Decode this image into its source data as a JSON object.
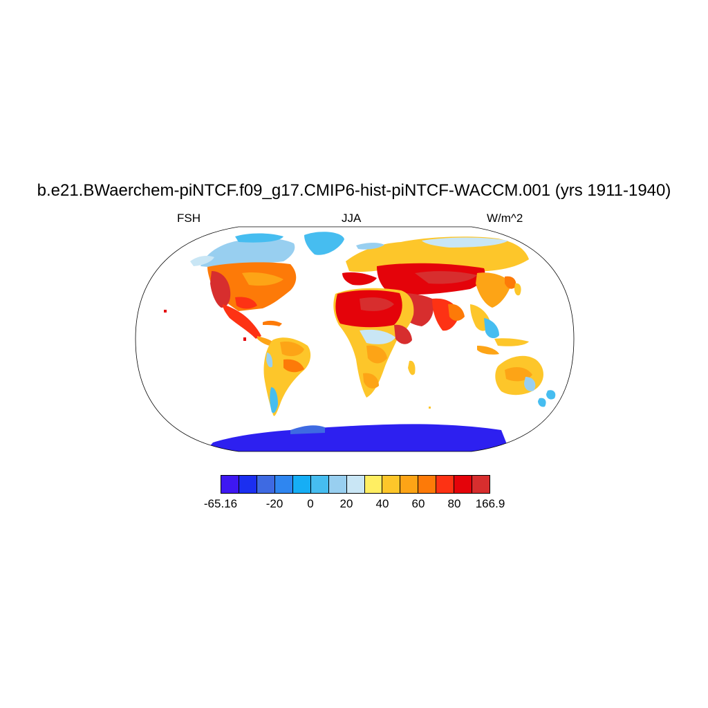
{
  "title": "b.e21.BWaerchem-piNTCF.f09_g17.CMIP6-hist-piNTCF-WACCM.001 (yrs 1911-1940)",
  "left_label": "FSH",
  "center_label": "JJA",
  "right_label": "W/m^2",
  "colorbar": {
    "colors": [
      "#3e18f2",
      "#1b2ff0",
      "#3e6ae2",
      "#2f86f0",
      "#16aef5",
      "#46bdf0",
      "#98cff0",
      "#c9e6f5",
      "#ffee62",
      "#fdc62a",
      "#fda416",
      "#fd7a08",
      "#fd3214",
      "#e4030a",
      "#d72e2e"
    ],
    "labels": [
      {
        "text": "-65.16",
        "boundary": 0
      },
      {
        "text": "-20",
        "boundary": 3
      },
      {
        "text": "0",
        "boundary": 5
      },
      {
        "text": "20",
        "boundary": 7
      },
      {
        "text": "40",
        "boundary": 9
      },
      {
        "text": "60",
        "boundary": 11
      },
      {
        "text": "80",
        "boundary": 13
      },
      {
        "text": "166.9",
        "boundary": 15
      }
    ]
  }
}
